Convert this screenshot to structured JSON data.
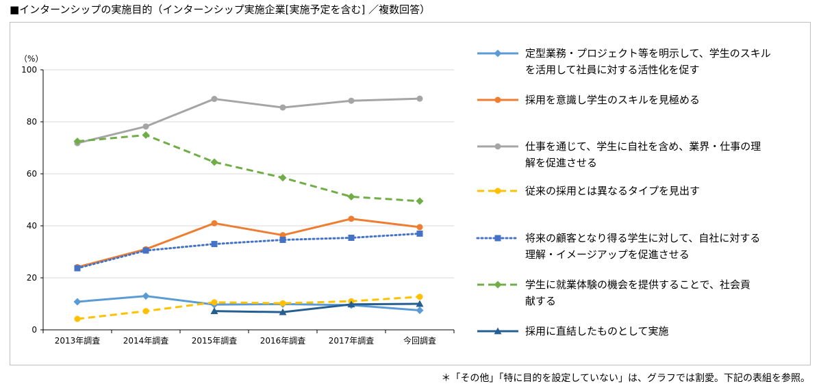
{
  "title": "■インターンシップの実施目的（インターンシップ実施企業[実施予定を含む] ／複数回答）",
  "footnote": "＊「その他」「特に目的を設定していない」は、グラフでは割愛。下記の表組を参照。",
  "chart_data": {
    "type": "line",
    "title": "■インターンシップの実施目的（インターンシップ実施企業[実施予定を含む] ／複数回答）",
    "ylabel": "（%）",
    "xlabel": "",
    "ylim": [
      0,
      100
    ],
    "yticks": [
      0,
      20,
      40,
      60,
      80,
      100
    ],
    "grid": true,
    "legend_position": "right",
    "categories": [
      "2013年調査",
      "2014年調査",
      "2015年調査",
      "2016年調査",
      "2017年調査",
      "今回調査"
    ],
    "series": [
      {
        "name_lines": [
          "定型業務・プロジェクト等を明示して、学生のスキル",
          "を活用して社員に対する活性化を促す"
        ],
        "color": "#5b9bd5",
        "dash": "solid",
        "marker": "diamond",
        "values": [
          10.8,
          13.0,
          9.7,
          9.9,
          9.5,
          7.5
        ]
      },
      {
        "name_lines": [
          "採用を意識し学生のスキルを見極める"
        ],
        "color": "#ed7d31",
        "dash": "solid",
        "marker": "circle",
        "values": [
          24.1,
          31.0,
          41.0,
          36.4,
          42.7,
          39.5
        ]
      },
      {
        "name_lines": [
          "仕事を通じて、学生に自社を含め、業界・仕事の理",
          "解を促進させる"
        ],
        "color": "#a5a5a5",
        "dash": "solid",
        "marker": "circle",
        "values": [
          71.8,
          78.2,
          88.8,
          85.5,
          88.1,
          88.9
        ]
      },
      {
        "name_lines": [
          "従来の採用とは異なるタイプを見出す"
        ],
        "color": "#ffc000",
        "dash": "dashed",
        "marker": "circle",
        "values": [
          4.2,
          7.2,
          10.6,
          10.2,
          11.0,
          12.7
        ]
      },
      {
        "name_lines": [
          "将来の顧客となり得る学生に対して、自社に対する",
          "理解・イメージアップを促進させる"
        ],
        "color": "#4472c4",
        "dash": "dotted",
        "marker": "square",
        "values": [
          23.7,
          30.5,
          33.0,
          34.6,
          35.4,
          37.0
        ]
      },
      {
        "name_lines": [
          "学生に就業体験の機会を提供することで、社会貢",
          "献する"
        ],
        "color": "#70ad47",
        "dash": "dashed",
        "marker": "diamond",
        "values": [
          72.5,
          74.9,
          64.5,
          58.5,
          51.2,
          49.5
        ]
      },
      {
        "name_lines": [
          "採用に直結したものとして実施"
        ],
        "color": "#255e91",
        "dash": "solid",
        "marker": "triangle",
        "values": [
          null,
          null,
          7.2,
          6.8,
          9.8,
          10.0
        ]
      }
    ]
  }
}
